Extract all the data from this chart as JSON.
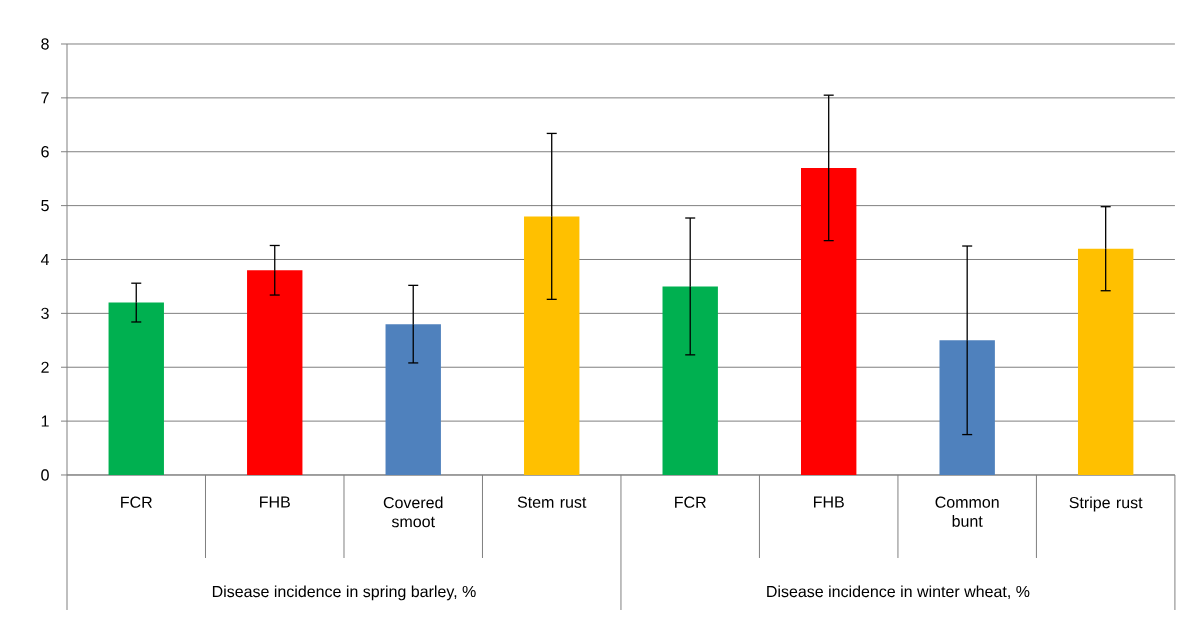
{
  "chart_data": {
    "type": "bar",
    "categories": [
      "FCR",
      "FHB",
      "Covered smoot",
      "Stem rust",
      "FCR",
      "FHB",
      "Common bunt",
      "Stripe rust"
    ],
    "values": [
      3.2,
      3.8,
      2.8,
      4.8,
      3.5,
      5.7,
      2.5,
      4.2
    ],
    "errors": [
      0.36,
      0.46,
      0.72,
      1.54,
      1.27,
      1.35,
      1.75,
      0.78
    ],
    "colors": [
      "#00b050",
      "#ff0000",
      "#4f81bd",
      "#ffc000",
      "#00b050",
      "#ff0000",
      "#4f81bd",
      "#ffc000"
    ],
    "ylim": [
      0,
      8
    ],
    "yticks": [
      0,
      1,
      2,
      3,
      4,
      5,
      6,
      7,
      8
    ],
    "grid": "y",
    "annotations": [
      "Disease incidence in spring barley, %",
      "Disease incidence in winter wheat, %"
    ]
  }
}
